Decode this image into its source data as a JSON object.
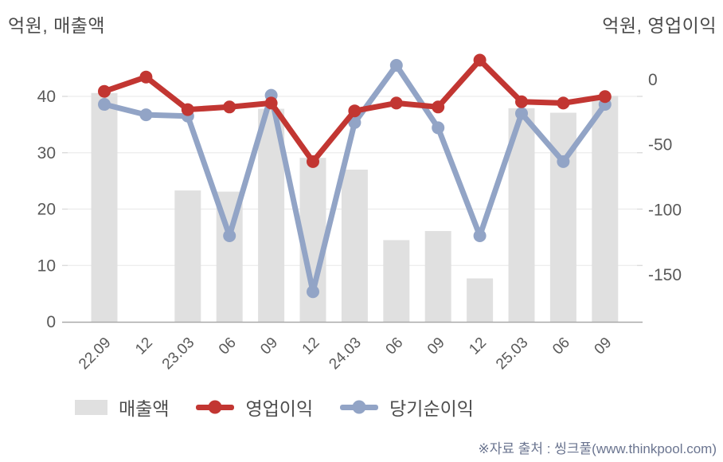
{
  "header": {
    "left_axis_title": "억원, 매출액",
    "right_axis_title": "억원, 영업이익"
  },
  "chart_data": {
    "type": "bar",
    "subtype": "bar+line combo, dual axis",
    "categories": [
      "22.09",
      "12",
      "23.03",
      "06",
      "09",
      "12",
      "24.03",
      "06",
      "09",
      "12",
      "25.03",
      "06",
      "09"
    ],
    "series": [
      {
        "name": "매출액",
        "type": "bar",
        "axis": "left",
        "color": "#e0e0e0",
        "values": [
          40.6,
          null,
          23.3,
          23.1,
          37.8,
          29.1,
          27.0,
          14.5,
          16.1,
          7.7,
          37.9,
          37.1,
          40.1
        ]
      },
      {
        "name": "영업이익",
        "type": "line",
        "axis": "right",
        "color": "#c23632",
        "values": [
          -9,
          2,
          -23,
          -21,
          -18,
          -63,
          -24,
          -18,
          -21,
          15,
          -17,
          -18,
          -13
        ]
      },
      {
        "name": "당기순이익",
        "type": "line",
        "axis": "right",
        "color": "#92a4c6",
        "values": [
          -19,
          -27,
          -28,
          -120,
          -12,
          -163,
          -33,
          11,
          -37,
          -120,
          -26,
          -63,
          -19
        ]
      }
    ],
    "left_axis": {
      "label": "억원, 매출액",
      "ticks": [
        0,
        10,
        20,
        30,
        40
      ],
      "range": [
        0,
        47
      ]
    },
    "right_axis": {
      "label": "억원, 영업이익",
      "ticks": [
        0,
        -50,
        -100,
        -150
      ],
      "range": [
        -186,
        18
      ]
    },
    "grid": true,
    "legend_position": "bottom",
    "title": ""
  },
  "legend": {
    "items": [
      {
        "label": "매출액",
        "swatch": "bar",
        "color": "#e0e0e0"
      },
      {
        "label": "영업이익",
        "swatch": "line-dot",
        "color": "#c23632"
      },
      {
        "label": "당기순이익",
        "swatch": "line-dot",
        "color": "#92a4c6"
      }
    ]
  },
  "footer": {
    "source_note": "※자료 출처 : 씽크풀(www.thinkpool.com)"
  },
  "colors": {
    "bar": "#e0e0e0",
    "operating_profit_line": "#c23632",
    "net_income_line": "#92a4c6",
    "grid_line": "#ececec",
    "tick_mark": "#d9d9d9",
    "axis_line": "#a9a9a9",
    "tick_text": "#595959",
    "title_text": "#4a4a4a",
    "source_text": "#6b7590",
    "background": "#ffffff"
  }
}
